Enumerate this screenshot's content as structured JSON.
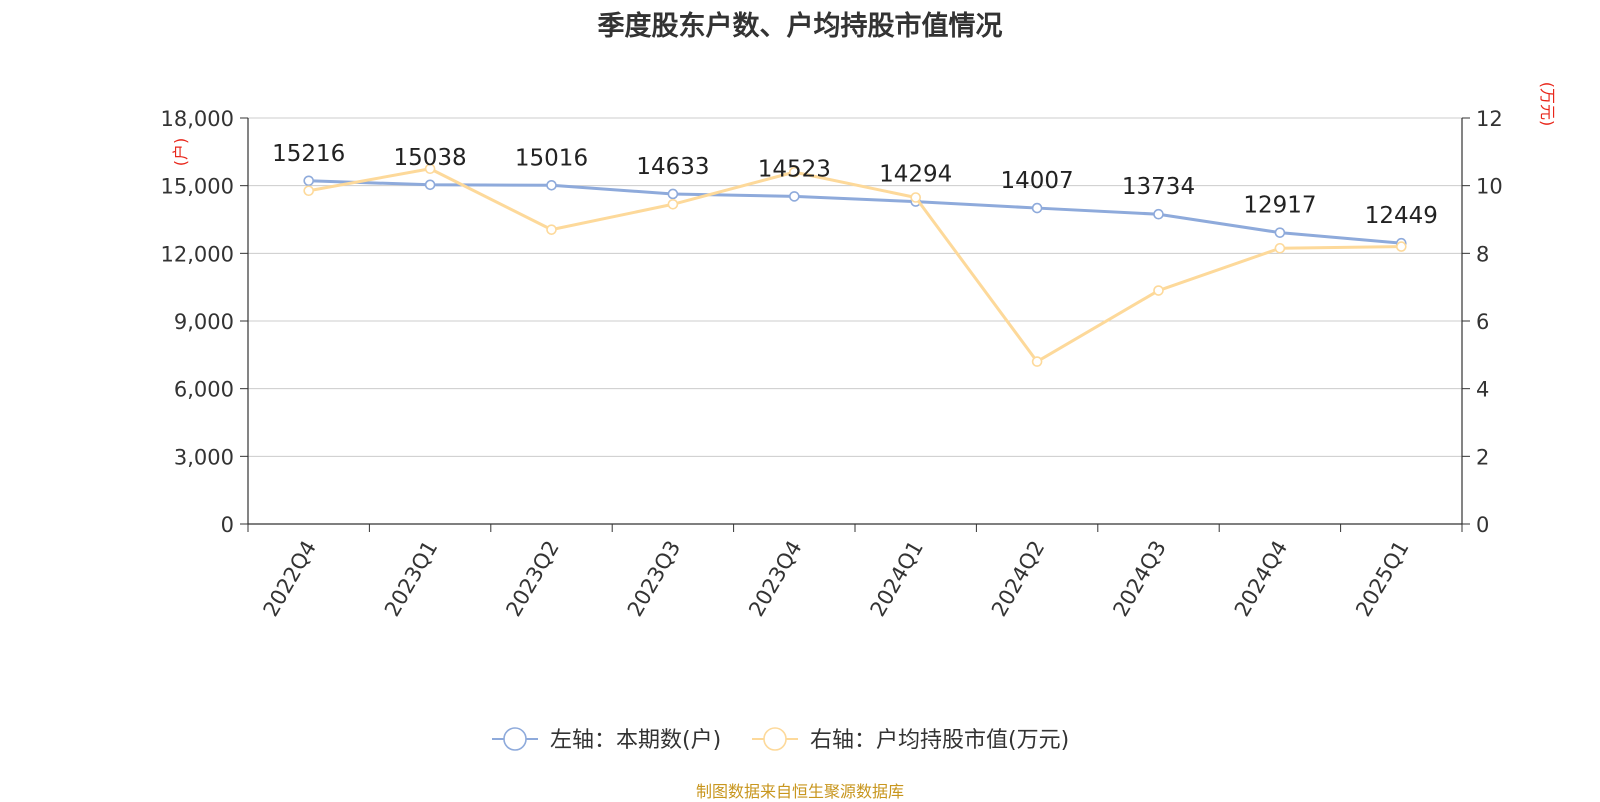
{
  "chart_data": {
    "type": "line",
    "title": "季度股东户数、户均持股市值情况",
    "categories": [
      "2022Q4",
      "2023Q1",
      "2023Q2",
      "2023Q3",
      "2023Q4",
      "2024Q1",
      "2024Q2",
      "2024Q3",
      "2024Q4",
      "2025Q1"
    ],
    "left_axis": {
      "unit": "户",
      "ylim": [
        0,
        18000
      ],
      "ticks": [
        "0",
        "3,000",
        "6,000",
        "9,000",
        "12,000",
        "15,000",
        "18,000"
      ]
    },
    "right_axis": {
      "unit": "万元",
      "ylim": [
        0,
        12
      ],
      "ticks": [
        "0",
        "2",
        "4",
        "6",
        "8",
        "10",
        "12"
      ]
    },
    "series": [
      {
        "name": "左轴：本期数(户)",
        "axis": "left",
        "color": "#8eaadb",
        "values": [
          15216,
          15038,
          15016,
          14633,
          14523,
          14294,
          14007,
          13734,
          12917,
          12449
        ],
        "labels": [
          "15216",
          "15038",
          "15016",
          "14633",
          "14523",
          "14294",
          "14007",
          "13734",
          "12917",
          "12449"
        ]
      },
      {
        "name": "右轴：户均持股市值(万元)",
        "axis": "right",
        "color": "#fdd99a",
        "values": [
          9.85,
          10.5,
          8.7,
          9.45,
          10.4,
          9.65,
          4.8,
          6.9,
          8.15,
          8.2
        ]
      }
    ],
    "grid": true,
    "legend_position": "bottom"
  },
  "source_text": "制图数据来自恒生聚源数据库"
}
